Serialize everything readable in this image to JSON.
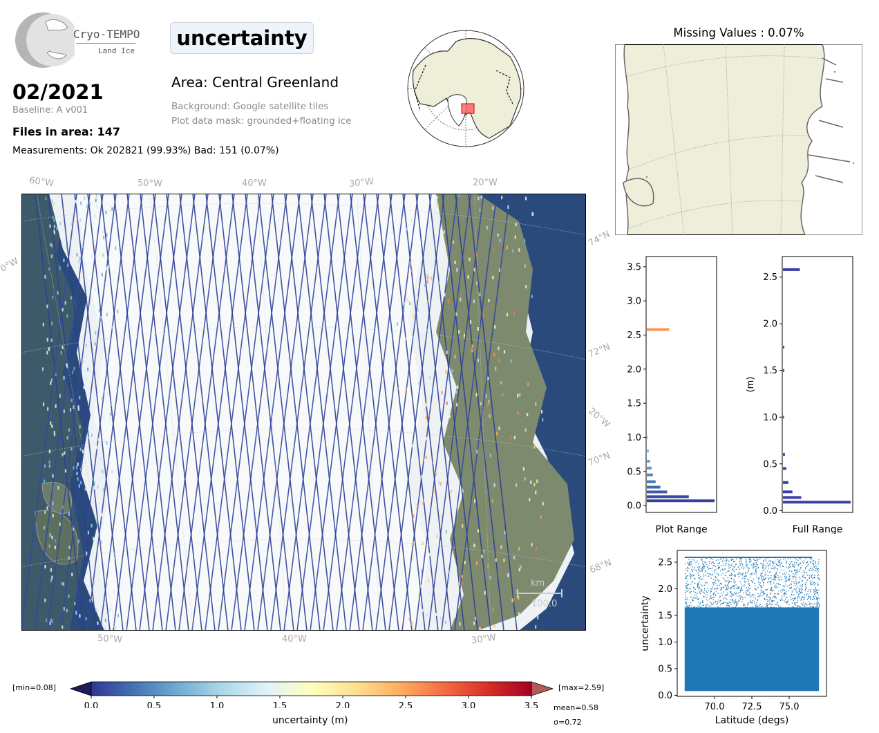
{
  "header": {
    "logo_name": "Cryo-TEMPO",
    "logo_sub": "Land Ice",
    "date": "02/2021",
    "baseline": "Baseline: A v001",
    "files": "Files in area: 147",
    "measurements": "Measurements: Ok 202821 (99.93%) Bad: 151 (0.07%)",
    "title": "uncertainty",
    "area": "Area: Central Greenland",
    "background": "Background: Google satellite tiles",
    "mask": "Plot data mask: grounded+floating ice"
  },
  "main_map": {
    "lon_top": [
      "60°W",
      "50°W",
      "40°W",
      "30°W",
      "20°W"
    ],
    "lon_bottom": [
      "50°W",
      "40°W",
      "30°W"
    ],
    "lat_right": [
      "74°N",
      "72°N",
      "20°W",
      "70°N",
      "68°N"
    ],
    "lat_left_partial": "0°W",
    "scalebar_unit": "km",
    "scalebar_value": "100.0"
  },
  "missing_map": {
    "title": "Missing Values : 0.07%"
  },
  "colorbar": {
    "min_label": "[min=0.08]",
    "max_label": "[max=2.59]",
    "ticks": [
      "0.0",
      "0.5",
      "1.0",
      "1.5",
      "2.0",
      "2.5",
      "3.0",
      "3.5"
    ],
    "label": "uncertainty (m)",
    "mean": "mean=0.58",
    "sigma": "σ=0.72",
    "colors": [
      "#313695",
      "#4575b4",
      "#74add1",
      "#abd9e9",
      "#e0f3f8",
      "#ffffbf",
      "#fee090",
      "#fdae61",
      "#f46d43",
      "#d73027",
      "#a50026"
    ]
  },
  "chart_data": [
    {
      "type": "bar",
      "orientation": "horizontal",
      "xlabel": "Plot Range",
      "ylabel": "",
      "ylim": [
        -0.1,
        3.65
      ],
      "yticks": [
        "0.0",
        "0.5",
        "1.0",
        "1.5",
        "2.0",
        "2.5",
        "3.0",
        "3.5"
      ],
      "bins": [
        {
          "y": 0.07,
          "value": 1.0
        },
        {
          "y": 0.13,
          "value": 0.62
        },
        {
          "y": 0.2,
          "value": 0.3
        },
        {
          "y": 0.27,
          "value": 0.2
        },
        {
          "y": 0.35,
          "value": 0.13
        },
        {
          "y": 0.45,
          "value": 0.09
        },
        {
          "y": 0.55,
          "value": 0.07
        },
        {
          "y": 0.65,
          "value": 0.05
        },
        {
          "y": 0.8,
          "value": 0.03
        },
        {
          "y": 1.0,
          "value": 0.02
        },
        {
          "y": 1.55,
          "value": 0.015
        },
        {
          "y": 2.58,
          "value": 0.33
        }
      ]
    },
    {
      "type": "bar",
      "orientation": "horizontal",
      "xlabel": "Full Range",
      "ylabel": "(m)",
      "ylim": [
        -0.02,
        2.72
      ],
      "yticks": [
        "0.0",
        "0.5",
        "1.0",
        "1.5",
        "2.0",
        "2.5"
      ],
      "bins": [
        {
          "y": 0.09,
          "value": 1.0
        },
        {
          "y": 0.14,
          "value": 0.27
        },
        {
          "y": 0.2,
          "value": 0.14
        },
        {
          "y": 0.3,
          "value": 0.08
        },
        {
          "y": 0.45,
          "value": 0.05
        },
        {
          "y": 0.6,
          "value": 0.03
        },
        {
          "y": 1.0,
          "value": 0.015
        },
        {
          "y": 1.5,
          "value": 0.02
        },
        {
          "y": 1.75,
          "value": 0.02
        },
        {
          "y": 2.58,
          "value": 0.25
        }
      ]
    },
    {
      "type": "scatter",
      "xlabel": "Latitude (degs)",
      "ylabel": "uncertainty",
      "xlim": [
        67.5,
        77.5
      ],
      "ylim": [
        -0.02,
        2.72
      ],
      "xticks": [
        "70.0",
        "72.5",
        "75.0"
      ],
      "yticks": [
        "0.0",
        "0.5",
        "1.0",
        "1.5",
        "2.0",
        "2.5"
      ],
      "x_range": [
        68.0,
        77.0
      ],
      "y_band_dense": [
        0.08,
        1.65
      ],
      "y_band_sparse": [
        1.65,
        2.59
      ],
      "y_max_line": 2.59,
      "color": "#1f77b4"
    }
  ]
}
